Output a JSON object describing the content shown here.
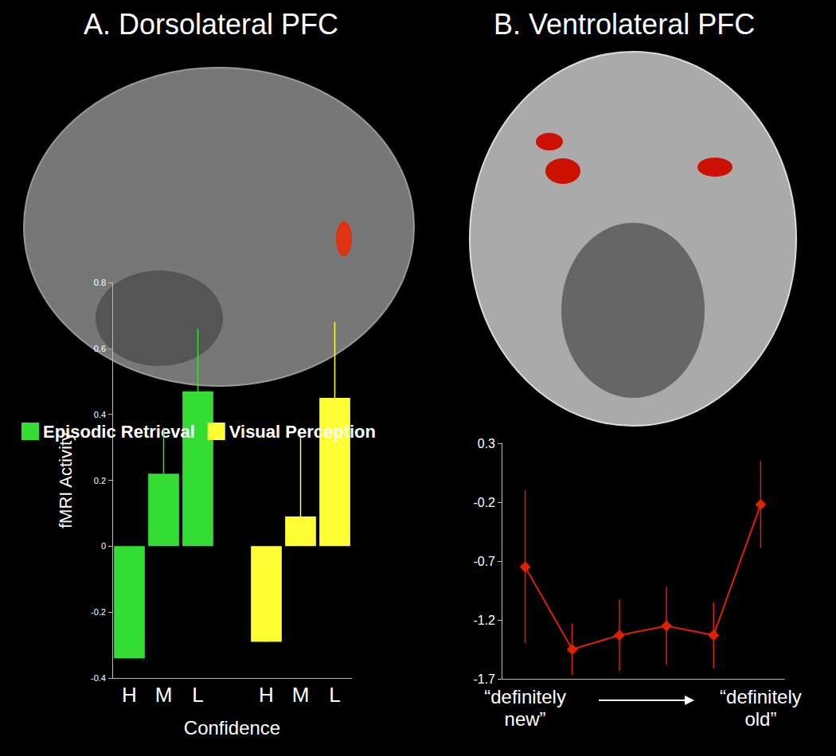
{
  "chart_data": [
    {
      "type": "bar",
      "title": "A. Dorsolateral PFC",
      "categories": [
        "H",
        "M",
        "L",
        null,
        "H",
        "M",
        "L"
      ],
      "series": [
        {
          "name": "Episodic Retrieval",
          "color": "#33dd33",
          "values": [
            -0.34,
            0.22,
            0.47,
            null,
            null,
            null,
            null
          ],
          "errors": [
            0.18,
            0.14,
            0.19,
            null,
            null,
            null,
            null
          ]
        },
        {
          "name": "Visual Perception",
          "color": "#ffff33",
          "values": [
            null,
            null,
            null,
            null,
            -0.29,
            0.09,
            0.45
          ],
          "errors": [
            null,
            null,
            null,
            null,
            0.24,
            0.24,
            0.23
          ]
        }
      ],
      "xlabel": "Confidence",
      "ylabel": "fMRI Activity",
      "ylim": [
        -0.4,
        0.8
      ],
      "yticks": [
        -0.4,
        -0.2,
        0,
        0.2,
        0.4,
        0.6,
        0.8
      ],
      "legend": "top",
      "grid": false
    },
    {
      "type": "line",
      "title": "B. Ventrolateral PFC",
      "categories": [
        "“definitely new”",
        null,
        null,
        null,
        null,
        "“definitely old”"
      ],
      "values": [
        -0.75,
        -1.45,
        -1.33,
        -1.25,
        -1.33,
        -0.22
      ],
      "errors": [
        0.65,
        0.22,
        0.3,
        0.33,
        0.28,
        0.37
      ],
      "color": "#dd2200",
      "marker": "diamond",
      "ylim": [
        -1.7,
        0.3
      ],
      "yticks": [
        -1.7,
        -1.2,
        -0.7,
        -0.2,
        0.3
      ],
      "grid": false
    }
  ]
}
